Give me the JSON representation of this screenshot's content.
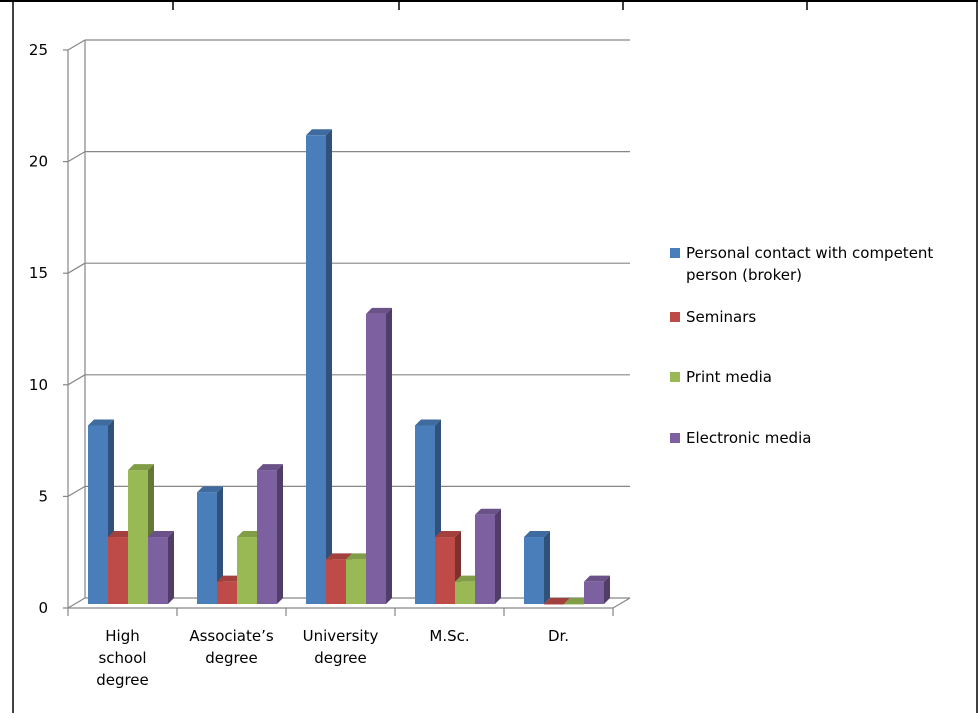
{
  "chart_data": {
    "type": "bar",
    "title": "",
    "xlabel": "",
    "ylabel": "",
    "ylim": [
      0,
      25
    ],
    "yticks": [
      0,
      5,
      10,
      15,
      20,
      25
    ],
    "grid": true,
    "legend_position": "right",
    "categories": [
      [
        "High",
        "school",
        "degree"
      ],
      [
        "Associate’s",
        "degree"
      ],
      [
        "University",
        "degree"
      ],
      [
        "M.Sc."
      ],
      [
        "Dr."
      ]
    ],
    "series": [
      {
        "name_lines": [
          "Personal contact with competent",
          "person (broker)"
        ],
        "color": "#4a7ebb",
        "values": [
          8,
          5,
          21,
          8,
          3
        ]
      },
      {
        "name_lines": [
          "Seminars"
        ],
        "color": "#be4b48",
        "values": [
          3,
          1,
          2,
          3,
          0
        ]
      },
      {
        "name_lines": [
          "Print media"
        ],
        "color": "#98b954",
        "values": [
          6,
          3,
          2,
          1,
          0
        ]
      },
      {
        "name_lines": [
          "Electronic media"
        ],
        "color": "#7d60a0",
        "values": [
          3,
          6,
          13,
          4,
          1
        ]
      }
    ]
  }
}
